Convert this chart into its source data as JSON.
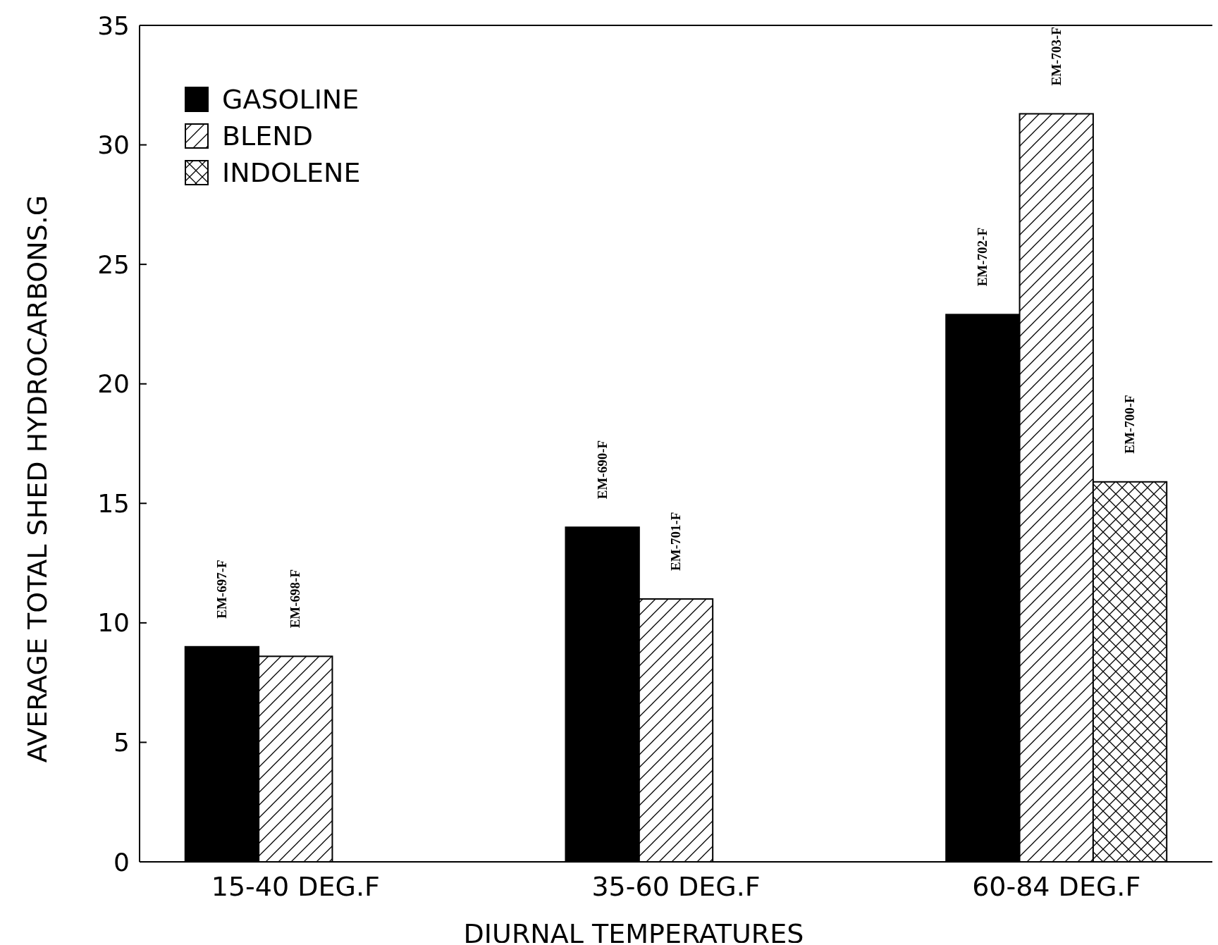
{
  "chart_data": {
    "type": "bar",
    "xlabel": "DIURNAL TEMPERATURES",
    "ylabel": "AVERAGE TOTAL SHED HYDROCARBONS.G",
    "categories": [
      "15-40 DEG.F",
      "35-60 DEG.F",
      "60-84 DEG.F"
    ],
    "series": [
      {
        "name": "GASOLINE",
        "color": "#000000",
        "values": [
          9.0,
          14.0,
          22.9
        ],
        "value_labels": [
          "EM-697-F",
          "EM-690-F",
          "EM-702-F"
        ]
      },
      {
        "name": "BLEND",
        "color": "#000000",
        "values": [
          8.6,
          11.0,
          31.3
        ],
        "value_labels": [
          "EM-698-F",
          "EM-701-F",
          "EM-703-F"
        ]
      },
      {
        "name": "INDOLENE",
        "color": "#000000",
        "values": [
          null,
          null,
          15.9
        ],
        "value_labels": [
          null,
          null,
          "EM-700-F"
        ]
      }
    ],
    "ylim": [
      0,
      35
    ],
    "yticks": [
      0,
      5,
      10,
      15,
      20,
      25,
      30,
      35
    ],
    "grid": false,
    "legend": "top left"
  }
}
